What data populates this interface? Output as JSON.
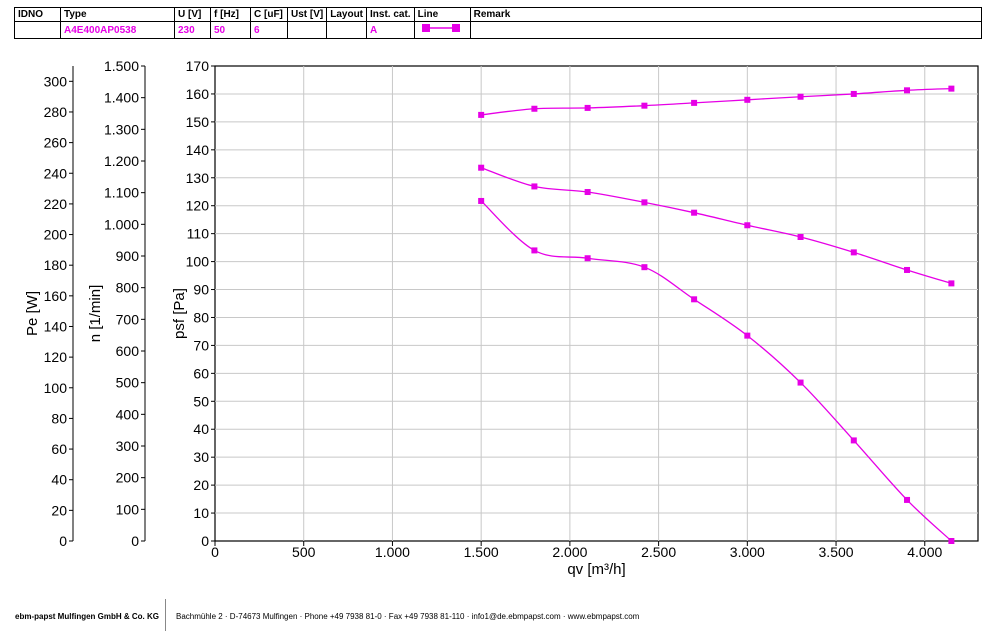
{
  "header": {
    "columns": [
      "IDNO",
      "Type",
      "U [V]",
      "f [Hz]",
      "C [uF]",
      "Ust [V]",
      "Layout",
      "Inst. cat.",
      "Line",
      "Remark"
    ],
    "row": {
      "idno": "",
      "type": "A4E400AP0538",
      "u": "230",
      "f": "50",
      "c": "6",
      "ust": "",
      "layout": "",
      "inst_cat": "A",
      "remark": ""
    },
    "accent_color": "#e600e6"
  },
  "footer": {
    "company": "ebm-papst Mulfingen GmbH & Co. KG",
    "address": "Bachmühle 2 · D-74673 Mulfingen · Phone +49 7938 81-0 · Fax +49 7938 81-110 · info1@de.ebmpapst.com · www.ebmpapst.com"
  },
  "chart_data": {
    "type": "line",
    "color": "#e600e6",
    "xlabel": "qv [m³/h]",
    "xlim": [
      0,
      4300
    ],
    "xticks": [
      0,
      500,
      1000,
      1500,
      2000,
      2500,
      3000,
      3500,
      4000
    ],
    "xtick_labels": [
      "0",
      "500",
      "1.000",
      "1.500",
      "2.000",
      "2.500",
      "3.000",
      "3.500",
      "4.000"
    ],
    "axes": [
      {
        "label": "Pe [W]",
        "lim": [
          0,
          310
        ],
        "ticks": [
          0,
          20,
          40,
          60,
          80,
          100,
          120,
          140,
          160,
          180,
          200,
          220,
          240,
          260,
          280,
          300
        ],
        "tick_labels": [
          "0",
          "20",
          "40",
          "60",
          "80",
          "100",
          "120",
          "140",
          "160",
          "180",
          "200",
          "220",
          "240",
          "260",
          "280",
          "300"
        ]
      },
      {
        "label": "n [1/min]",
        "lim": [
          0,
          1500
        ],
        "ticks": [
          0,
          100,
          200,
          300,
          400,
          500,
          600,
          700,
          800,
          900,
          1000,
          1100,
          1200,
          1300,
          1400,
          1500
        ],
        "tick_labels": [
          "0",
          "100",
          "200",
          "300",
          "400",
          "500",
          "600",
          "700",
          "800",
          "900",
          "1.000",
          "1.100",
          "1.200",
          "1.300",
          "1.400",
          "1.500"
        ]
      },
      {
        "label": "psf [Pa]",
        "lim": [
          0,
          170
        ],
        "ticks": [
          0,
          10,
          20,
          30,
          40,
          50,
          60,
          70,
          80,
          90,
          100,
          110,
          120,
          130,
          140,
          150,
          160,
          170
        ],
        "tick_labels": [
          "0",
          "10",
          "20",
          "30",
          "40",
          "50",
          "60",
          "70",
          "80",
          "90",
          "100",
          "110",
          "120",
          "130",
          "140",
          "150",
          "160",
          "170"
        ]
      }
    ],
    "series": [
      {
        "values_on": "psf",
        "x": [
          1500,
          1800,
          2100,
          2420,
          2700,
          3000,
          3300,
          3600,
          3900,
          4150
        ],
        "y": [
          152.5,
          154.7,
          155,
          155.8,
          156.8,
          157.9,
          159,
          160,
          161.3,
          161.9
        ]
      },
      {
        "values_on": "psf",
        "x": [
          1500,
          1800,
          2100,
          2420,
          2700,
          3000,
          3300,
          3600,
          3900,
          4150
        ],
        "y": [
          133.6,
          126.9,
          124.9,
          121.2,
          117.5,
          113,
          108.8,
          103.3,
          97,
          92.2
        ]
      },
      {
        "values_on": "psf",
        "x": [
          1500,
          1800,
          2100,
          2420,
          2700,
          3000,
          3300,
          3600,
          3900,
          4150
        ],
        "y": [
          121.7,
          104,
          101.2,
          98,
          86.5,
          73.5,
          56.7,
          36,
          14.7,
          0
        ]
      }
    ]
  }
}
